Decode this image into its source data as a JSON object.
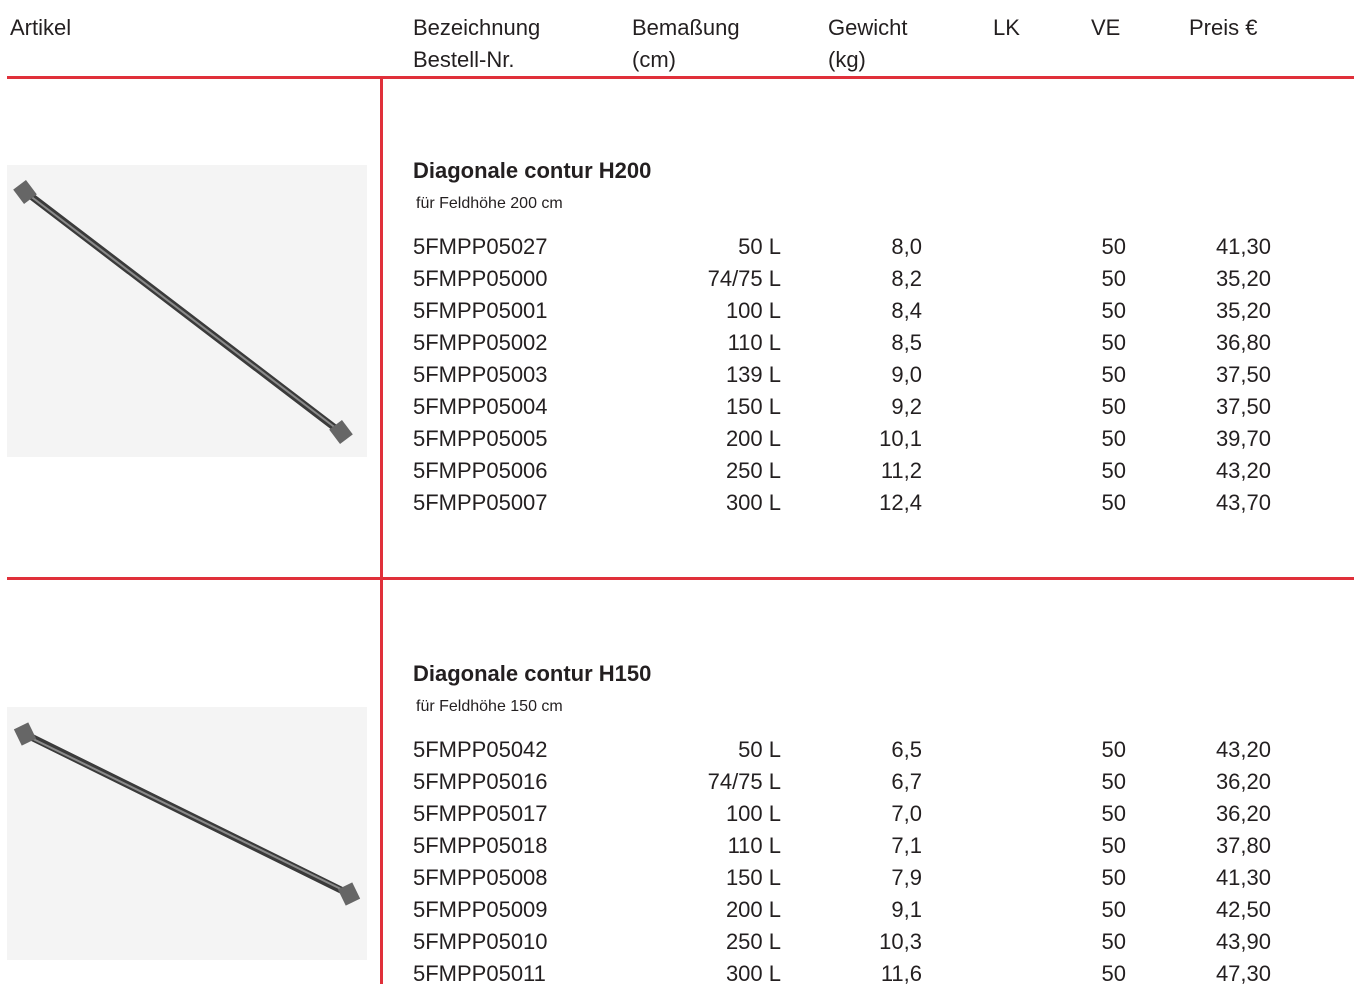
{
  "header": {
    "columns": [
      [
        "Artikel"
      ],
      [
        "Bezeichnung",
        "Bestell-Nr."
      ],
      [
        "Bemaßung",
        "(cm)"
      ],
      [
        "Gewicht",
        "(kg)"
      ],
      [
        "LK"
      ],
      [
        "VE"
      ],
      [
        "Preis €"
      ]
    ]
  },
  "sections": [
    {
      "title": "Diagonale contur H200",
      "subtitle": "für Feldhöhe 200 cm",
      "rows": [
        [
          "5FMPP05027",
          "50 L",
          "8,0",
          "50",
          "41,30"
        ],
        [
          "5FMPP05000",
          "74/75 L",
          "8,2",
          "50",
          "35,20"
        ],
        [
          "5FMPP05001",
          "100 L",
          "8,4",
          "50",
          "35,20"
        ],
        [
          "5FMPP05002",
          "110 L",
          "8,5",
          "50",
          "36,80"
        ],
        [
          "5FMPP05003",
          "139 L",
          "9,0",
          "50",
          "37,50"
        ],
        [
          "5FMPP05004",
          "150 L",
          "9,2",
          "50",
          "37,50"
        ],
        [
          "5FMPP05005",
          "200 L",
          "10,1",
          "50",
          "39,70"
        ],
        [
          "5FMPP05006",
          "250 L",
          "11,2",
          "50",
          "43,20"
        ],
        [
          "5FMPP05007",
          "300 L",
          "12,4",
          "50",
          "43,70"
        ]
      ]
    },
    {
      "title": "Diagonale contur H150",
      "subtitle": "für Feldhöhe 150 cm",
      "rows": [
        [
          "5FMPP05042",
          "50 L",
          "6,5",
          "50",
          "43,20"
        ],
        [
          "5FMPP05016",
          "74/75 L",
          "6,7",
          "50",
          "36,20"
        ],
        [
          "5FMPP05017",
          "100 L",
          "7,0",
          "50",
          "36,20"
        ],
        [
          "5FMPP05018",
          "110 L",
          "7,1",
          "50",
          "37,80"
        ],
        [
          "5FMPP05008",
          "150 L",
          "7,9",
          "50",
          "41,30"
        ],
        [
          "5FMPP05009",
          "200 L",
          "9,1",
          "50",
          "42,50"
        ],
        [
          "5FMPP05010",
          "250 L",
          "10,3",
          "50",
          "43,90"
        ],
        [
          "5FMPP05011",
          "300 L",
          "11,6",
          "50",
          "47,30"
        ]
      ]
    }
  ]
}
